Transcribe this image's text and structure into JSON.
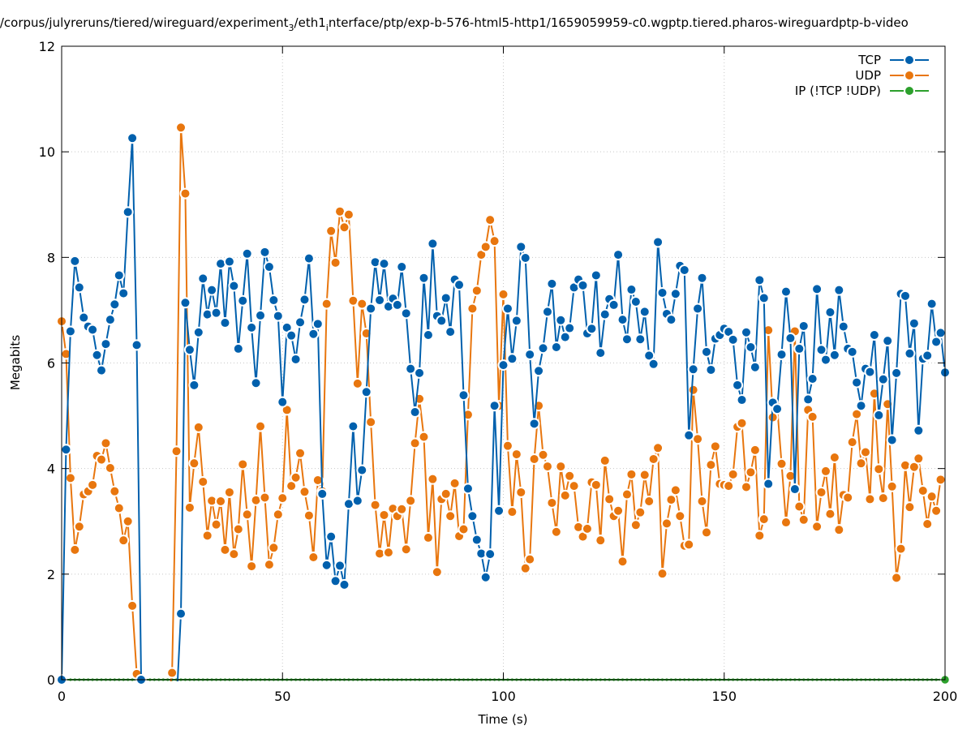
{
  "chart_data": {
    "type": "line",
    "title": "t/corpus/julyreruns/tiered/wireguard/experiment",
    "title_sub3": "3",
    "title_mid": "/eth1",
    "title_sub_i": "i",
    "title_tail": "nterface/ptp/exp-b-576-html5-http1/1659059959-c0.wgptp.tiered.pharos-wireguardptp-b-video",
    "xlabel": "Time (s)",
    "ylabel": "Megabits",
    "xlim": [
      0,
      200
    ],
    "ylim": [
      0,
      12
    ],
    "xticks": [
      0,
      50,
      100,
      150,
      200
    ],
    "yticks": [
      0,
      2,
      4,
      6,
      8,
      10,
      12
    ],
    "grid": true,
    "legend_position": "top-right",
    "series": [
      {
        "name": "TCP",
        "color": "#0060ad",
        "values": [
          0.0,
          4.36,
          6.6,
          7.93,
          7.43,
          6.86,
          6.69,
          6.63,
          6.15,
          5.86,
          6.36,
          6.82,
          7.11,
          7.66,
          7.32,
          8.86,
          10.26,
          6.34,
          0.0,
          null,
          null,
          null,
          null,
          null,
          null,
          null,
          null,
          1.25,
          7.14,
          6.25,
          5.58,
          6.58,
          7.6,
          6.92,
          7.38,
          6.95,
          7.88,
          6.76,
          7.92,
          7.46,
          6.27,
          7.18,
          8.07,
          6.67,
          5.62,
          6.9,
          8.1,
          7.82,
          7.19,
          6.89,
          5.26,
          6.67,
          6.52,
          6.07,
          6.77,
          7.2,
          7.98,
          6.55,
          6.74,
          3.52,
          2.17,
          2.71,
          1.87,
          2.16,
          1.8,
          3.33,
          4.8,
          3.39,
          3.97,
          5.45,
          7.03,
          7.91,
          7.19,
          7.88,
          7.07,
          7.22,
          7.1,
          7.82,
          6.94,
          5.89,
          5.07,
          5.81,
          7.61,
          6.53,
          8.26,
          6.89,
          6.8,
          7.23,
          6.59,
          7.58,
          7.48,
          5.39,
          3.62,
          3.1,
          2.65,
          2.39,
          1.94,
          2.38,
          5.19,
          3.2,
          5.96,
          7.03,
          6.08,
          6.8,
          8.2,
          7.99,
          6.16,
          4.85,
          5.85,
          6.28,
          6.97,
          7.5,
          6.3,
          6.81,
          6.49,
          6.66,
          7.43,
          7.58,
          7.47,
          6.56,
          6.65,
          7.66,
          6.19,
          6.92,
          7.21,
          7.1,
          8.05,
          6.82,
          6.45,
          7.39,
          7.16,
          6.45,
          6.97,
          6.14,
          5.98,
          8.29,
          7.33,
          6.93,
          6.82,
          7.31,
          7.84,
          7.76,
          4.63,
          5.88,
          7.03,
          7.61,
          6.21,
          5.87,
          6.46,
          6.53,
          6.65,
          6.59,
          6.44,
          5.58,
          5.3,
          6.58,
          6.3,
          5.92,
          7.57,
          7.23,
          3.71,
          5.25,
          5.13,
          6.16,
          7.35,
          6.47,
          3.61,
          6.27,
          6.7,
          5.31,
          5.7,
          7.4,
          6.25,
          6.06,
          6.96,
          6.15,
          7.38,
          6.69,
          6.27,
          6.21,
          5.63,
          5.19,
          5.89,
          5.83,
          6.53,
          5.01,
          5.69,
          6.42,
          4.54,
          5.81,
          7.31,
          7.27,
          6.18,
          6.75,
          4.72,
          6.08,
          6.14,
          7.12,
          6.4,
          6.57,
          5.82
        ]
      },
      {
        "name": "UDP",
        "color": "#e8760e",
        "values": [
          6.79,
          6.17,
          3.82,
          2.46,
          2.9,
          3.51,
          3.57,
          3.69,
          4.24,
          4.17,
          4.48,
          4.01,
          3.57,
          3.25,
          2.64,
          3.0,
          1.4,
          0.11,
          null,
          null,
          null,
          null,
          null,
          null,
          null,
          0.13,
          4.33,
          10.46,
          9.21,
          3.26,
          4.1,
          4.78,
          3.75,
          2.73,
          3.39,
          2.94,
          3.38,
          2.46,
          3.55,
          2.38,
          2.85,
          4.08,
          3.13,
          2.15,
          3.4,
          4.8,
          3.45,
          2.18,
          2.5,
          3.13,
          3.44,
          5.11,
          3.67,
          3.83,
          4.29,
          3.56,
          3.11,
          2.32,
          3.78,
          3.57,
          7.12,
          8.5,
          7.9,
          8.87,
          8.57,
          8.81,
          7.18,
          5.61,
          7.12,
          6.56,
          4.88,
          3.31,
          2.39,
          3.12,
          2.41,
          3.24,
          3.1,
          3.23,
          2.47,
          3.39,
          4.48,
          5.32,
          4.6,
          2.69,
          3.8,
          2.04,
          3.42,
          3.52,
          3.1,
          3.72,
          2.72,
          2.85,
          5.02,
          7.03,
          7.37,
          8.05,
          8.2,
          8.71,
          8.31,
          5.19,
          7.3,
          4.43,
          3.18,
          4.27,
          3.55,
          2.11,
          2.28,
          4.18,
          5.19,
          4.26,
          4.04,
          3.35,
          2.8,
          4.04,
          3.49,
          3.86,
          3.67,
          2.89,
          2.71,
          2.86,
          3.74,
          3.69,
          2.64,
          4.15,
          3.42,
          3.1,
          3.2,
          2.24,
          3.51,
          3.89,
          2.93,
          3.17,
          3.88,
          3.38,
          4.18,
          4.39,
          2.01,
          2.96,
          3.41,
          3.59,
          3.1,
          2.54,
          2.56,
          5.49,
          4.56,
          3.38,
          2.79,
          4.07,
          4.42,
          3.71,
          3.69,
          3.67,
          3.89,
          4.79,
          4.86,
          3.65,
          3.93,
          4.35,
          2.73,
          3.04,
          6.62,
          4.97,
          5.17,
          4.09,
          2.98,
          3.86,
          6.6,
          3.28,
          3.03,
          5.11,
          4.98,
          2.9,
          3.55,
          3.95,
          3.14,
          4.21,
          2.84,
          3.5,
          3.45,
          4.5,
          5.03,
          4.1,
          4.31,
          3.42,
          5.42,
          3.99,
          3.44,
          5.22,
          3.66,
          1.93,
          2.48,
          4.06,
          3.27,
          4.03,
          4.19,
          3.58,
          2.95,
          3.47,
          3.2,
          3.79
        ]
      },
      {
        "name": "IP (!TCP  !UDP)",
        "color": "#2ca02c",
        "values": [
          0,
          0,
          0,
          0,
          0,
          0,
          0,
          0,
          0,
          0,
          0,
          0,
          0,
          0,
          0,
          0,
          0,
          0,
          0,
          0,
          0,
          0,
          0,
          0,
          0,
          0,
          0,
          0,
          0,
          0,
          0,
          0,
          0,
          0,
          0,
          0,
          0,
          0,
          0,
          0,
          0,
          0,
          0,
          0,
          0,
          0,
          0,
          0,
          0,
          0,
          0,
          0,
          0,
          0,
          0,
          0,
          0,
          0,
          0,
          0,
          0,
          0,
          0,
          0,
          0,
          0,
          0,
          0,
          0,
          0,
          0,
          0,
          0,
          0,
          0,
          0,
          0,
          0,
          0,
          0,
          0,
          0,
          0,
          0,
          0,
          0,
          0,
          0,
          0,
          0,
          0,
          0,
          0,
          0,
          0,
          0,
          0,
          0,
          0,
          0,
          0,
          0,
          0,
          0,
          0,
          0,
          0,
          0,
          0,
          0,
          0,
          0,
          0,
          0,
          0,
          0,
          0,
          0,
          0,
          0,
          0,
          0,
          0,
          0,
          0,
          0,
          0,
          0,
          0,
          0,
          0,
          0,
          0,
          0,
          0,
          0,
          0,
          0,
          0,
          0,
          0,
          0,
          0,
          0,
          0,
          0,
          0,
          0,
          0,
          0,
          0,
          0,
          0,
          0,
          0,
          0,
          0,
          0,
          0,
          0,
          0,
          0,
          0,
          0,
          0,
          0,
          0,
          0,
          0,
          0,
          0,
          0,
          0,
          0,
          0,
          0,
          0,
          0,
          0,
          0,
          0,
          0,
          0,
          0,
          0,
          0,
          0,
          0,
          0,
          0,
          0,
          0,
          0,
          0,
          0,
          0,
          0,
          0,
          0,
          0,
          0
        ]
      }
    ]
  }
}
